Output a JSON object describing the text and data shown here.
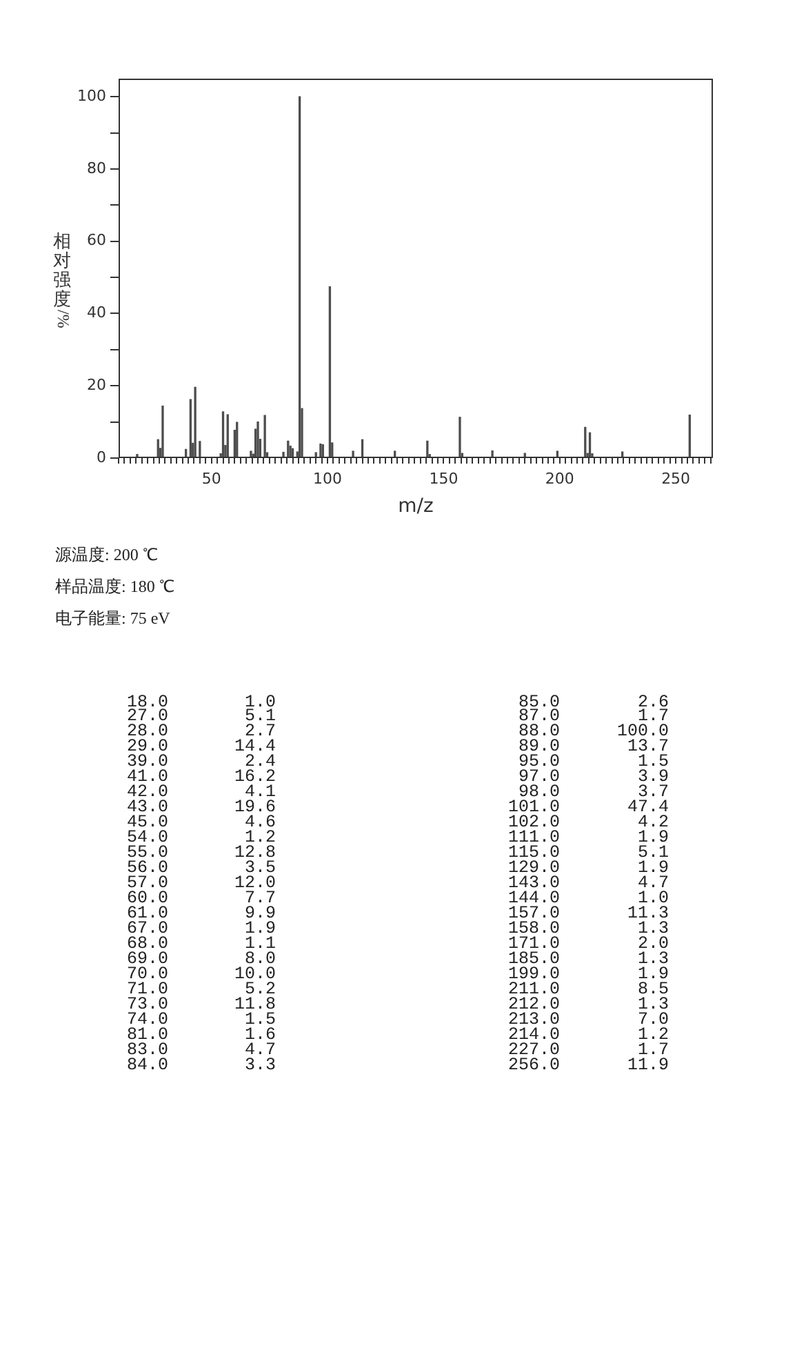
{
  "chart_data": [
    {
      "type": "bar",
      "xlabel": "m/z",
      "ylabel": "相对强度/%",
      "x": [
        18,
        27,
        28,
        29,
        39,
        41,
        42,
        43,
        45,
        54,
        55,
        56,
        57,
        60,
        61,
        67,
        68,
        69,
        70,
        71,
        73,
        74,
        81,
        83,
        84,
        85,
        87,
        88,
        89,
        95,
        97,
        98,
        101,
        102,
        111,
        115,
        129,
        143,
        144,
        157,
        158,
        171,
        185,
        199,
        211,
        212,
        213,
        214,
        227,
        256
      ],
      "values": [
        1.0,
        5.1,
        2.7,
        14.4,
        2.4,
        16.2,
        4.1,
        19.6,
        4.6,
        1.2,
        12.8,
        3.5,
        12.0,
        7.7,
        9.9,
        1.9,
        1.1,
        8.0,
        10.0,
        5.2,
        11.8,
        1.5,
        1.6,
        4.7,
        3.3,
        2.6,
        1.7,
        100.0,
        13.7,
        1.5,
        3.9,
        3.7,
        47.4,
        4.2,
        1.9,
        5.1,
        1.9,
        4.7,
        1.0,
        11.3,
        1.3,
        2.0,
        1.3,
        1.9,
        8.5,
        1.3,
        7.0,
        1.2,
        1.7,
        11.9
      ],
      "color": "#4d4d4d",
      "xlim": [
        10,
        266
      ],
      "ylim": [
        0,
        105
      ],
      "xticks": [
        {
          "value": 10,
          "label": null
        },
        {
          "value": 12.5,
          "label": null
        },
        {
          "value": 15,
          "label": null
        },
        {
          "value": 17.5,
          "label": null
        },
        {
          "value": 20,
          "label": null
        },
        {
          "value": 22.5,
          "label": null
        },
        {
          "value": 25,
          "label": null
        },
        {
          "value": 27.5,
          "label": null
        },
        {
          "value": 30,
          "label": null
        },
        {
          "value": 32.5,
          "label": null
        },
        {
          "value": 35,
          "label": null
        },
        {
          "value": 37.5,
          "label": null
        },
        {
          "value": 40,
          "label": null
        },
        {
          "value": 42.5,
          "label": null
        },
        {
          "value": 45,
          "label": null
        },
        {
          "value": 47.5,
          "label": null
        },
        50,
        {
          "value": 52.5,
          "label": null
        },
        {
          "value": 55,
          "label": null
        },
        {
          "value": 57.5,
          "label": null
        },
        {
          "value": 60,
          "label": null
        },
        {
          "value": 62.5,
          "label": null
        },
        {
          "value": 65,
          "label": null
        },
        {
          "value": 67.5,
          "label": null
        },
        {
          "value": 70,
          "label": null
        },
        {
          "value": 72.5,
          "label": null
        },
        {
          "value": 75,
          "label": null
        },
        {
          "value": 77.5,
          "label": null
        },
        {
          "value": 80,
          "label": null
        },
        {
          "value": 82.5,
          "label": null
        },
        {
          "value": 85,
          "label": null
        },
        {
          "value": 87.5,
          "label": null
        },
        {
          "value": 90,
          "label": null
        },
        {
          "value": 92.5,
          "label": null
        },
        {
          "value": 95,
          "label": null
        },
        {
          "value": 97.5,
          "label": null
        },
        100,
        {
          "value": 102.5,
          "label": null
        },
        {
          "value": 105,
          "label": null
        },
        {
          "value": 107.5,
          "label": null
        },
        {
          "value": 110,
          "label": null
        },
        {
          "value": 112.5,
          "label": null
        },
        {
          "value": 115,
          "label": null
        },
        {
          "value": 117.5,
          "label": null
        },
        {
          "value": 120,
          "label": null
        },
        {
          "value": 122.5,
          "label": null
        },
        {
          "value": 125,
          "label": null
        },
        {
          "value": 127.5,
          "label": null
        },
        {
          "value": 130,
          "label": null
        },
        {
          "value": 132.5,
          "label": null
        },
        {
          "value": 135,
          "label": null
        },
        {
          "value": 137.5,
          "label": null
        },
        {
          "value": 140,
          "label": null
        },
        {
          "value": 142.5,
          "label": null
        },
        {
          "value": 145,
          "label": null
        },
        {
          "value": 147.5,
          "label": null
        },
        150,
        {
          "value": 152.5,
          "label": null
        },
        {
          "value": 155,
          "label": null
        },
        {
          "value": 157.5,
          "label": null
        },
        {
          "value": 160,
          "label": null
        },
        {
          "value": 162.5,
          "label": null
        },
        {
          "value": 165,
          "label": null
        },
        {
          "value": 167.5,
          "label": null
        },
        {
          "value": 170,
          "label": null
        },
        {
          "value": 172.5,
          "label": null
        },
        {
          "value": 175,
          "label": null
        },
        {
          "value": 177.5,
          "label": null
        },
        {
          "value": 180,
          "label": null
        },
        {
          "value": 182.5,
          "label": null
        },
        {
          "value": 185,
          "label": null
        },
        {
          "value": 187.5,
          "label": null
        },
        {
          "value": 190,
          "label": null
        },
        {
          "value": 192.5,
          "label": null
        },
        {
          "value": 195,
          "label": null
        },
        {
          "value": 197.5,
          "label": null
        },
        200,
        {
          "value": 202.5,
          "label": null
        },
        {
          "value": 205,
          "label": null
        },
        {
          "value": 207.5,
          "label": null
        },
        {
          "value": 210,
          "label": null
        },
        {
          "value": 212.5,
          "label": null
        },
        {
          "value": 215,
          "label": null
        },
        {
          "value": 217.5,
          "label": null
        },
        {
          "value": 220,
          "label": null
        },
        {
          "value": 222.5,
          "label": null
        },
        {
          "value": 225,
          "label": null
        },
        {
          "value": 227.5,
          "label": null
        },
        {
          "value": 230,
          "label": null
        },
        {
          "value": 232.5,
          "label": null
        },
        {
          "value": 235,
          "label": null
        },
        {
          "value": 237.5,
          "label": null
        },
        {
          "value": 240,
          "label": null
        },
        {
          "value": 242.5,
          "label": null
        },
        {
          "value": 245,
          "label": null
        },
        {
          "value": 247.5,
          "label": null
        },
        250,
        {
          "value": 252.5,
          "label": null
        },
        {
          "value": 255,
          "label": null
        },
        {
          "value": 257.5,
          "label": null
        },
        {
          "value": 260,
          "label": null
        },
        {
          "value": 262.5,
          "label": null
        },
        {
          "value": 265,
          "label": null
        }
      ],
      "yticks": [
        0,
        {
          "value": 10,
          "label": null
        },
        20,
        {
          "value": 30,
          "label": null
        },
        40,
        {
          "value": 50,
          "label": null
        },
        60,
        {
          "value": 70,
          "label": null
        },
        80,
        {
          "value": 90,
          "label": null
        },
        100
      ],
      "annotations": [
        "源温度: 200 ℃",
        "样品温度: 180 ℃",
        "电子能量: 75 eV"
      ]
    },
    {
      "type": "other",
      "annotations": [
        "18.0",
        "1.0",
        "85.0",
        "2.6",
        "27.0",
        "5.1",
        "87.0",
        "1.7",
        "28.0",
        "2.7",
        "88.0",
        "100.0",
        "29.0",
        "14.4",
        "89.0",
        "13.7",
        "39.0",
        "2.4",
        "95.0",
        "1.5",
        "41.0",
        "16.2",
        "97.0",
        "3.9",
        "42.0",
        "4.1",
        "98.0",
        "3.7",
        "43.0",
        "19.6",
        "101.0",
        "47.4",
        "45.0",
        "4.6",
        "102.0",
        "4.2",
        "54.0",
        "1.2",
        "111.0",
        "1.9",
        "55.0",
        "12.8",
        "115.0",
        "5.1",
        "56.0",
        "3.5",
        "129.0",
        "1.9",
        "57.0",
        "12.0",
        "143.0",
        "4.7",
        "60.0",
        "7.7",
        "144.0",
        "1.0",
        "61.0",
        "9.9",
        "157.0",
        "11.3",
        "67.0",
        "1.9",
        "158.0",
        "1.3",
        "68.0",
        "1.1",
        "171.0",
        "2.0",
        "69.0",
        "8.0",
        "185.0",
        "1.3",
        "70.0",
        "10.0",
        "199.0",
        "1.9",
        "71.0",
        "5.2",
        "211.0",
        "8.5",
        "73.0",
        "11.8",
        "212.0",
        "1.3",
        "74.0",
        "1.5",
        "213.0",
        "7.0",
        "81.0",
        "1.6",
        "214.0",
        "1.2",
        "83.0",
        "4.7",
        "227.0",
        "1.7",
        "84.0",
        "3.3",
        "256.0",
        "11.9"
      ]
    }
  ]
}
